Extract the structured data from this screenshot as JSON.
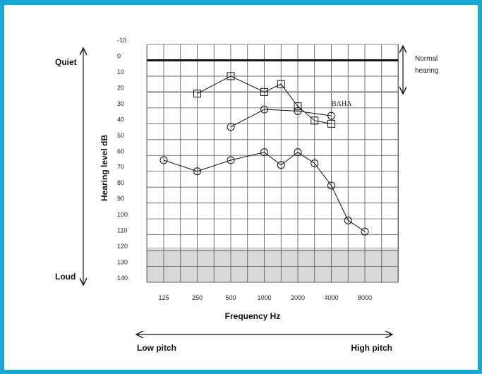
{
  "colors": {
    "border": "#1aa7d6",
    "shade": "#d9d9d9",
    "grid": "#555555",
    "ink": "#111111"
  },
  "labels": {
    "y_top": "Quiet",
    "y_bottom": "Loud",
    "y_axis": "Hearing level dB",
    "x_axis": "Frequency Hz",
    "x_left": "Low pitch",
    "x_right": "High pitch",
    "normal_1": "Normal",
    "normal_2": "hearing",
    "baha": "BAHA"
  },
  "chart_data": {
    "type": "line",
    "xlabel": "Frequency Hz",
    "ylabel": "Hearing level dB",
    "y_ticks": [
      "-10",
      "0",
      "10",
      "20",
      "30",
      "40",
      "50",
      "60",
      "70",
      "80",
      "90",
      "100",
      "110",
      "120",
      "130",
      "140"
    ],
    "y_range": [
      -10,
      140
    ],
    "y_inverted": true,
    "x_ticks": [
      "125",
      "250",
      "500",
      "1000",
      "2000",
      "4000",
      "8000"
    ],
    "x_scale": "log",
    "grid": true,
    "normal_band": [
      0,
      20
    ],
    "shaded_region": [
      120,
      140
    ],
    "series": [
      {
        "marker": "circle",
        "points": [
          [
            125,
            63
          ],
          [
            250,
            70
          ],
          [
            500,
            63
          ],
          [
            1000,
            58
          ],
          [
            1414,
            66
          ],
          [
            2000,
            58
          ],
          [
            2828,
            65
          ],
          [
            4000,
            79
          ],
          [
            5657,
            101
          ],
          [
            8000,
            108
          ]
        ]
      },
      {
        "marker": "square",
        "points": [
          [
            250,
            21
          ],
          [
            500,
            10
          ],
          [
            1000,
            20
          ],
          [
            1414,
            15
          ],
          [
            2000,
            29
          ],
          [
            2828,
            38
          ],
          [
            4000,
            40
          ]
        ]
      },
      {
        "marker": "circle",
        "points": [
          [
            500,
            42
          ],
          [
            1000,
            31
          ],
          [
            2000,
            32
          ],
          [
            4000,
            35
          ]
        ]
      }
    ]
  }
}
